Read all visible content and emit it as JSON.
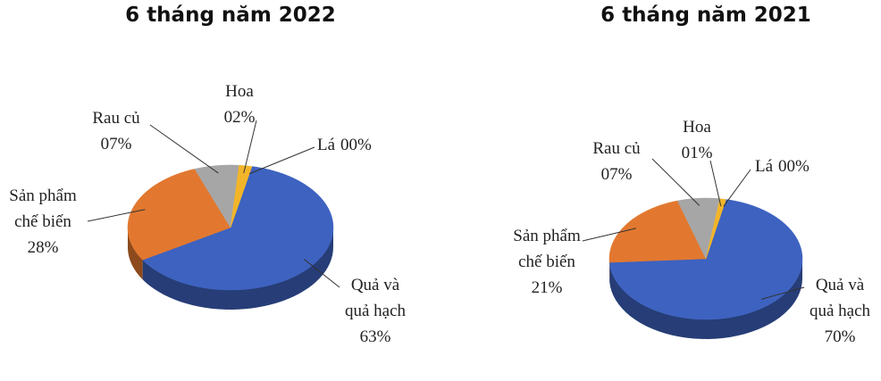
{
  "chart_data": [
    {
      "type": "pie3d",
      "title": "6 tháng năm 2022",
      "categories": [
        "Quả và quả hạch",
        "Sản phẩm chế biến",
        "Rau củ",
        "Hoa",
        "Lá"
      ],
      "values": [
        63,
        28,
        7,
        2,
        0
      ],
      "value_labels": [
        "63%",
        "28%",
        "07%",
        "02%",
        "00%"
      ],
      "colors": [
        "#3d62c0",
        "#e2782f",
        "#a6a6a6",
        "#f2b52a",
        "#f2b52a"
      ]
    },
    {
      "type": "pie3d",
      "title": "6 tháng năm 2021",
      "categories": [
        "Quả và quả hạch",
        "Sản phẩm chế biến",
        "Rau củ",
        "Hoa",
        "Lá"
      ],
      "values": [
        70,
        21,
        7,
        1,
        0
      ],
      "value_labels": [
        "70%",
        "21%",
        "07%",
        "01%",
        "00%"
      ],
      "colors": [
        "#3d62c0",
        "#e2782f",
        "#a6a6a6",
        "#f2b52a",
        "#f2b52a"
      ]
    }
  ]
}
